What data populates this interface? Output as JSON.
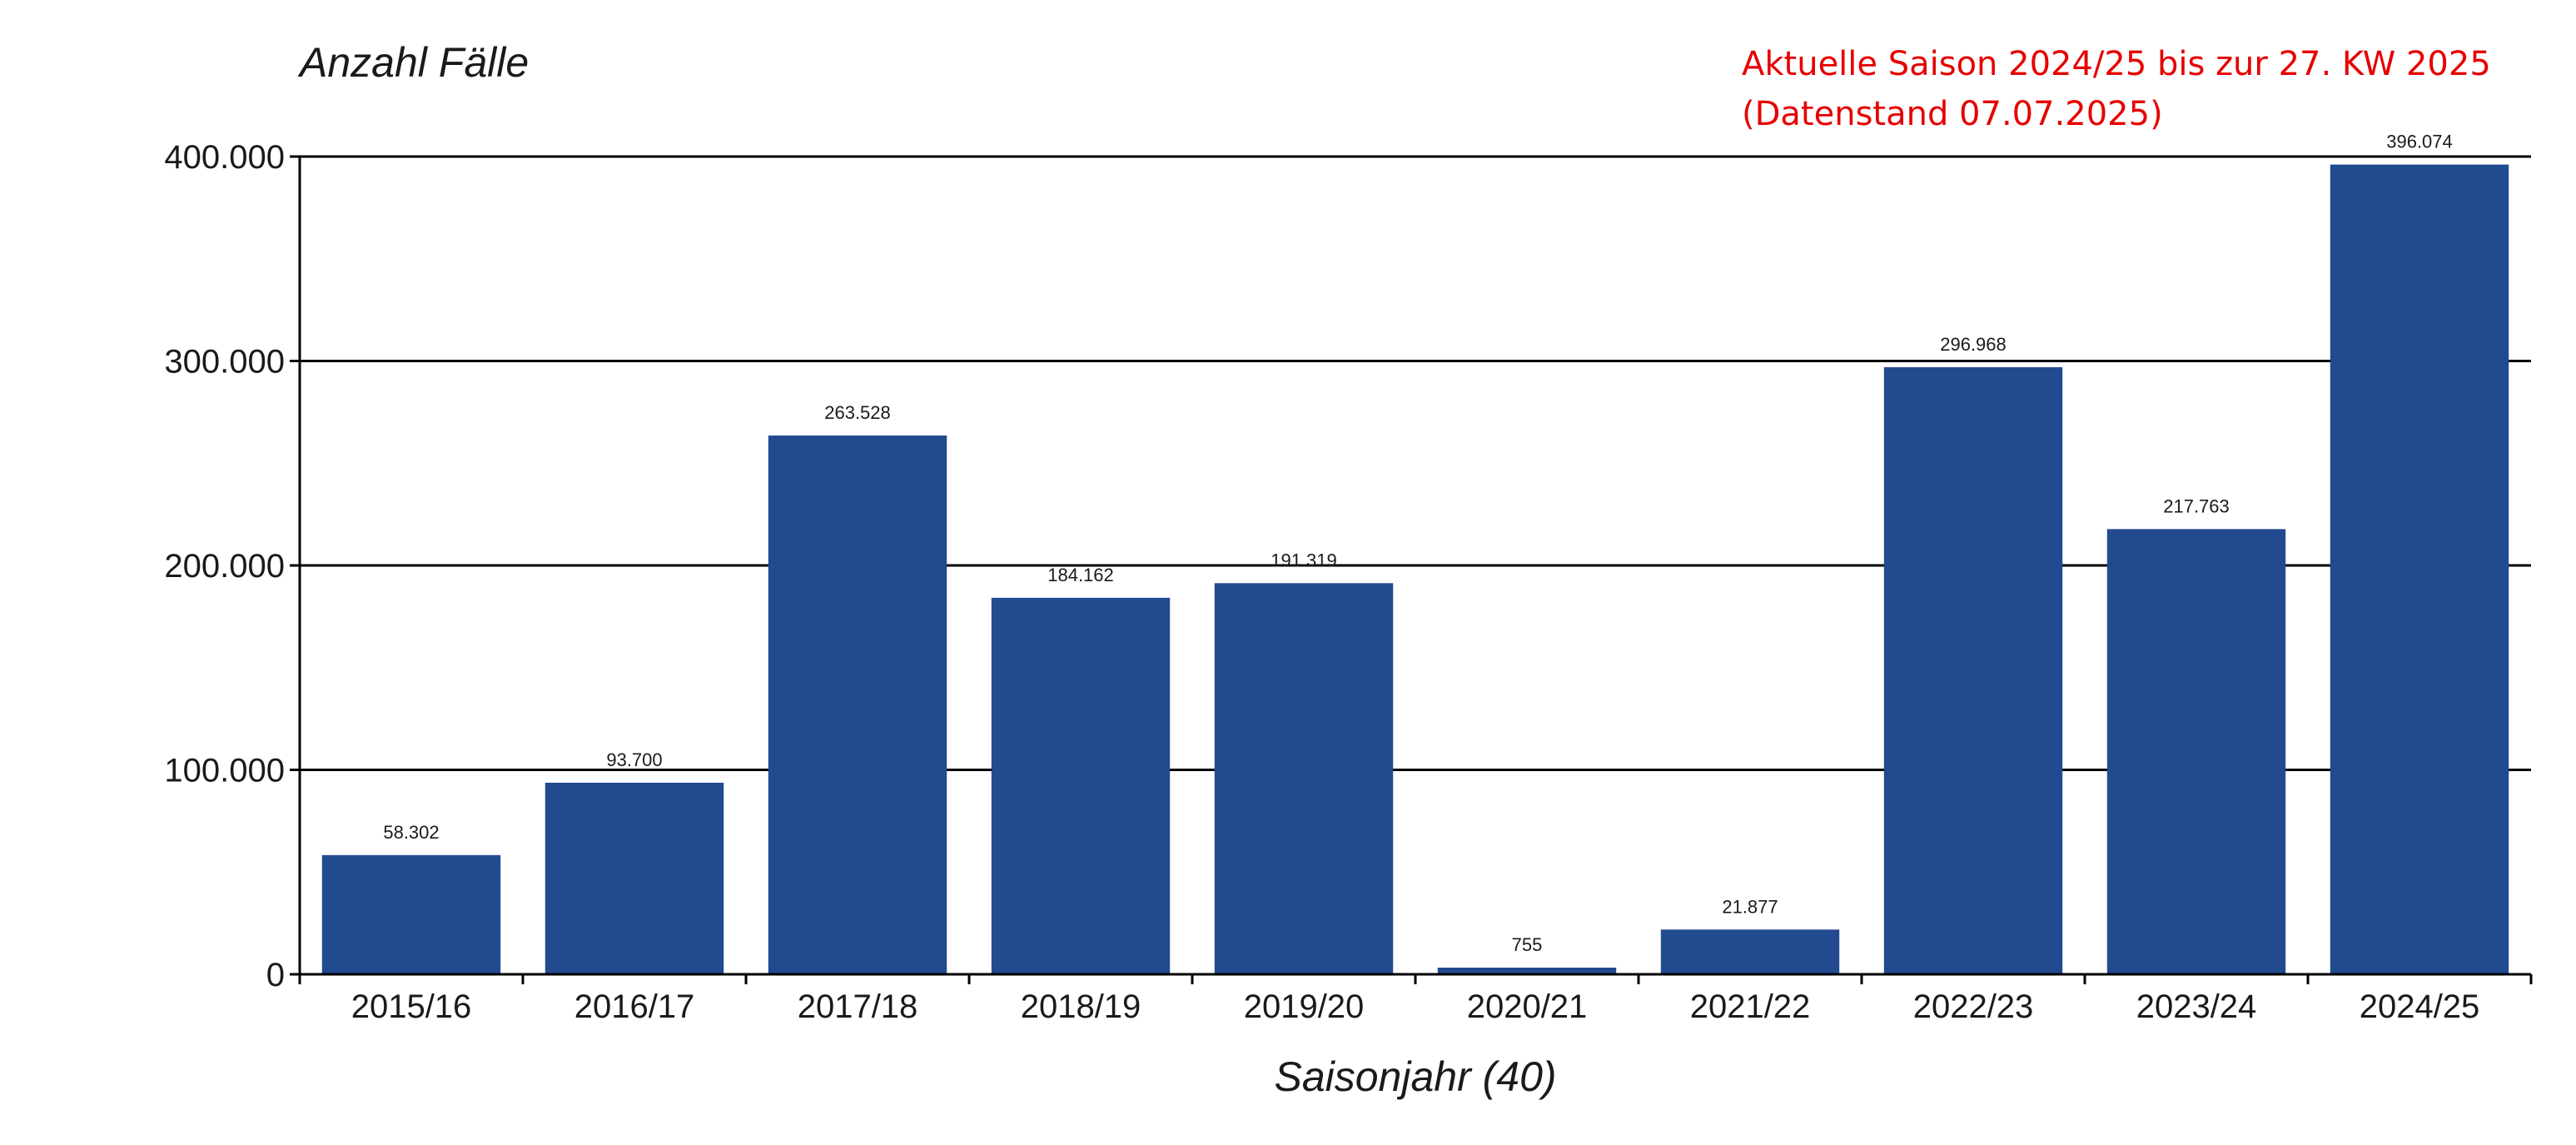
{
  "chart_data": {
    "type": "bar",
    "ylabel": "Anzahl Fälle",
    "xlabel": "Saisonjahr (40)",
    "note": [
      "Aktuelle Saison 2024/25 bis zur 27. KW 2025",
      "(Datenstand 07.07.2025)"
    ],
    "categories": [
      "2015/16",
      "2016/17",
      "2017/18",
      "2018/19",
      "2019/20",
      "2020/21",
      "2021/22",
      "2022/23",
      "2023/24",
      "2024/25"
    ],
    "values": [
      58302,
      93700,
      263528,
      184162,
      191319,
      755,
      21877,
      296968,
      217763,
      396074
    ],
    "value_labels": [
      "58.302",
      "93.700",
      "263.528",
      "184.162",
      "191.319",
      "755",
      "21.877",
      "296.968",
      "217.763",
      "396.074"
    ],
    "ylim": [
      0,
      400000
    ],
    "yticks": [
      0,
      100000,
      200000,
      300000,
      400000
    ],
    "ytick_labels": [
      "0",
      "100.000",
      "200.000",
      "300.000",
      "400.000"
    ],
    "grid": "horizontal",
    "colors": {
      "bar": "#214a8f",
      "note": "#e60000",
      "axis": "#000000"
    }
  }
}
